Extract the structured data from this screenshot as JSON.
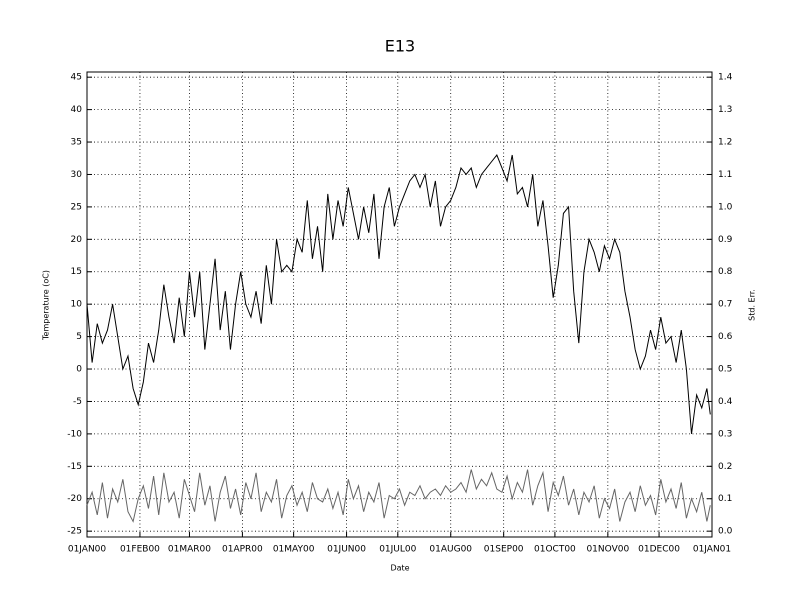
{
  "chart_data": {
    "type": "line",
    "title": "E13",
    "xlabel": "Date",
    "ylabel": "Temperature (oC)",
    "y2label": "Std. Err.",
    "x": [
      0,
      3,
      6,
      9,
      12,
      15,
      18,
      21,
      24,
      27,
      30,
      33,
      36,
      39,
      42,
      45,
      48,
      51,
      54,
      57,
      60,
      63,
      66,
      69,
      72,
      75,
      78,
      81,
      84,
      87,
      90,
      93,
      96,
      99,
      102,
      105,
      108,
      111,
      114,
      117,
      120,
      123,
      126,
      129,
      132,
      135,
      138,
      141,
      144,
      147,
      150,
      153,
      156,
      159,
      162,
      165,
      168,
      171,
      174,
      177,
      180,
      183,
      186,
      189,
      192,
      195,
      198,
      201,
      204,
      207,
      210,
      213,
      216,
      219,
      222,
      225,
      228,
      231,
      234,
      237,
      240,
      243,
      246,
      249,
      252,
      255,
      258,
      261,
      264,
      267,
      270,
      273,
      276,
      279,
      282,
      285,
      288,
      291,
      294,
      297,
      300,
      303,
      306,
      309,
      312,
      315,
      318,
      321,
      324,
      327,
      330,
      333,
      336,
      339,
      342,
      345,
      348,
      351,
      354,
      357,
      360,
      363,
      365
    ],
    "series": [
      {
        "color": "#000000",
        "values": [
          10,
          1,
          7,
          4,
          6,
          10,
          5,
          0,
          2,
          -3,
          -5.5,
          -2,
          4,
          1,
          6,
          13,
          8,
          4,
          11,
          5,
          15,
          8,
          15,
          3,
          10,
          17,
          6,
          12,
          3,
          10,
          15,
          10,
          8,
          12,
          7,
          16,
          10,
          20,
          15,
          16,
          15,
          20,
          18,
          26,
          17,
          22,
          15,
          27,
          20,
          26,
          22,
          28,
          24,
          20,
          25,
          21,
          27,
          17,
          25,
          28,
          22,
          25,
          27,
          29,
          30,
          28,
          30,
          25,
          29,
          22,
          25,
          26,
          28,
          31,
          30,
          31,
          28,
          30,
          31,
          32,
          33,
          31,
          29,
          33,
          27,
          28,
          25,
          30,
          22,
          26,
          19,
          11,
          16,
          24,
          25,
          12,
          4,
          15,
          20,
          18,
          15,
          19,
          17,
          20,
          18,
          12,
          8,
          3,
          0,
          2,
          6,
          3,
          8,
          4,
          5,
          1,
          6,
          0,
          -10,
          -4,
          -6,
          -3,
          -7
        ]
      },
      {
        "color": "#666666",
        "axis": "y2",
        "values": [
          0.08,
          0.12,
          0.05,
          0.15,
          0.04,
          0.13,
          0.09,
          0.16,
          0.06,
          0.03,
          0.1,
          0.14,
          0.07,
          0.17,
          0.05,
          0.18,
          0.09,
          0.12,
          0.04,
          0.16,
          0.11,
          0.06,
          0.18,
          0.08,
          0.14,
          0.03,
          0.12,
          0.17,
          0.07,
          0.13,
          0.05,
          0.15,
          0.1,
          0.18,
          0.06,
          0.12,
          0.09,
          0.16,
          0.04,
          0.11,
          0.14,
          0.08,
          0.12,
          0.06,
          0.15,
          0.1,
          0.09,
          0.13,
          0.07,
          0.12,
          0.05,
          0.16,
          0.1,
          0.14,
          0.06,
          0.12,
          0.09,
          0.15,
          0.04,
          0.11,
          0.1,
          0.13,
          0.08,
          0.12,
          0.11,
          0.14,
          0.1,
          0.12,
          0.13,
          0.11,
          0.14,
          0.12,
          0.13,
          0.15,
          0.12,
          0.19,
          0.13,
          0.16,
          0.14,
          0.18,
          0.13,
          0.12,
          0.17,
          0.1,
          0.15,
          0.12,
          0.19,
          0.08,
          0.14,
          0.18,
          0.06,
          0.15,
          0.11,
          0.17,
          0.08,
          0.13,
          0.05,
          0.12,
          0.09,
          0.14,
          0.04,
          0.1,
          0.07,
          0.13,
          0.03,
          0.09,
          0.12,
          0.06,
          0.14,
          0.08,
          0.11,
          0.05,
          0.16,
          0.09,
          0.13,
          0.07,
          0.15,
          0.04,
          0.1,
          0.06,
          0.12,
          0.03,
          0.08
        ]
      }
    ],
    "xlim": [
      0,
      366
    ],
    "xticks": [
      {
        "value": 0,
        "label": "01JAN00"
      },
      {
        "value": 31,
        "label": "01FEB00"
      },
      {
        "value": 60,
        "label": "01MAR00"
      },
      {
        "value": 91,
        "label": "01APR00"
      },
      {
        "value": 121,
        "label": "01MAY00"
      },
      {
        "value": 152,
        "label": "01JUN00"
      },
      {
        "value": 182,
        "label": "01JUL00"
      },
      {
        "value": 213,
        "label": "01AUG00"
      },
      {
        "value": 244,
        "label": "01SEP00"
      },
      {
        "value": 274,
        "label": "01OCT00"
      },
      {
        "value": 305,
        "label": "01NOV00"
      },
      {
        "value": 335,
        "label": "01DEC00"
      },
      {
        "value": 366,
        "label": "01JAN01"
      }
    ],
    "ylim": [
      -25.9,
      45.8
    ],
    "yticks": [
      -25,
      -20,
      -15,
      -10,
      -5,
      0,
      5,
      10,
      15,
      20,
      25,
      30,
      35,
      40,
      45
    ],
    "y2lim": [
      -0.018,
      1.416
    ],
    "y2ticks": [
      {
        "value": 0,
        "label": "0.0"
      },
      0.1,
      0.2,
      0.3,
      0.4,
      0.5,
      0.6,
      0.7,
      0.8,
      0.9,
      {
        "value": 1,
        "label": "1.0"
      },
      1.1,
      1.2,
      1.3,
      1.4
    ],
    "grid": true
  }
}
